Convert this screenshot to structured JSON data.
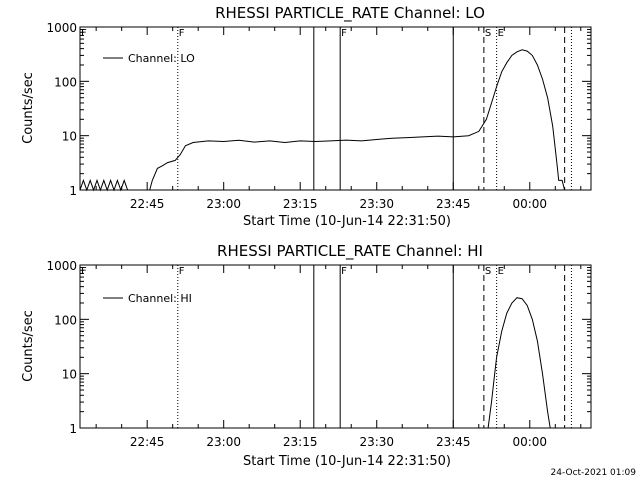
{
  "footer_timestamp": "24-Oct-2021 01:09",
  "chart_data": [
    {
      "type": "line",
      "title": "RHESSI PARTICLE_RATE Channel: LO",
      "xlabel": "Start Time (10-Jun-14 22:31:50)",
      "ylabel": "Counts/sec",
      "yscale": "log",
      "ylim": [
        1,
        1000
      ],
      "xlim": [
        "22:31:50",
        "00:12:00"
      ],
      "y_ticks": [
        {
          "value": 1,
          "label": "1"
        },
        {
          "value": 10,
          "label": "10"
        },
        {
          "value": 100,
          "label": "100"
        },
        {
          "value": 1000,
          "label": "1000"
        }
      ],
      "x_ticks": [
        {
          "value": "22:45",
          "label": "22:45"
        },
        {
          "value": "23:00",
          "label": "23:00"
        },
        {
          "value": "23:15",
          "label": "23:15"
        },
        {
          "value": "23:30",
          "label": "23:30"
        },
        {
          "value": "23:45",
          "label": "23:45"
        },
        {
          "value": "00:00",
          "label": "00:00"
        }
      ],
      "legend": {
        "position": "top-left",
        "entries": [
          "Channel: LO"
        ]
      },
      "vlines": [
        {
          "time": "22:31:50",
          "style": "dotted",
          "label": "F"
        },
        {
          "time": "22:51:00",
          "style": "dotted",
          "label": "F"
        },
        {
          "time": "23:17:40",
          "style": "solid",
          "label": ""
        },
        {
          "time": "23:22:50",
          "style": "solid",
          "label": "F"
        },
        {
          "time": "23:45:00",
          "style": "solid",
          "label": ""
        },
        {
          "time": "23:51:00",
          "style": "dashed",
          "label": "S"
        },
        {
          "time": "23:53:30",
          "style": "dotted",
          "label": "E"
        },
        {
          "time": "00:06:50",
          "style": "dashed",
          "label": ""
        },
        {
          "time": "00:08:10",
          "style": "dotted",
          "label": ""
        }
      ],
      "series": [
        {
          "name": "Channel: LO",
          "points": [
            [
              "22:31:50",
              1
            ],
            [
              "22:32:30",
              1.5
            ],
            [
              "22:33:10",
              1
            ],
            [
              "22:33:50",
              1.5
            ],
            [
              "22:34:30",
              1
            ],
            [
              "22:35:10",
              1.5
            ],
            [
              "22:35:50",
              1
            ],
            [
              "22:36:30",
              1.5
            ],
            [
              "22:37:10",
              1
            ],
            [
              "22:37:50",
              1.5
            ],
            [
              "22:38:30",
              1
            ],
            [
              "22:39:10",
              1.5
            ],
            [
              "22:39:50",
              1
            ],
            [
              "22:40:30",
              1.5
            ],
            [
              "22:41:10",
              1
            ],
            [
              "22:45:30",
              1
            ],
            [
              "22:46:00",
              1.5
            ],
            [
              "22:47:00",
              2.5
            ],
            [
              "22:48:00",
              2.8
            ],
            [
              "22:49:00",
              3.2
            ],
            [
              "22:50:30",
              3.5
            ],
            [
              "22:51:30",
              4.5
            ],
            [
              "22:52:30",
              6.5
            ],
            [
              "22:54:00",
              7.5
            ],
            [
              "22:57:00",
              8
            ],
            [
              "23:00:00",
              7.8
            ],
            [
              "23:03:00",
              8.2
            ],
            [
              "23:06:00",
              7.6
            ],
            [
              "23:09:00",
              8
            ],
            [
              "23:12:00",
              7.5
            ],
            [
              "23:15:00",
              8
            ],
            [
              "23:18:00",
              7.8
            ],
            [
              "23:21:00",
              8
            ],
            [
              "23:24:00",
              8.3
            ],
            [
              "23:27:00",
              8
            ],
            [
              "23:30:00",
              8.5
            ],
            [
              "23:33:00",
              9
            ],
            [
              "23:36:00",
              9.2
            ],
            [
              "23:39:00",
              9.5
            ],
            [
              "23:42:00",
              9.8
            ],
            [
              "23:45:00",
              9.5
            ],
            [
              "23:48:00",
              10
            ],
            [
              "23:50:00",
              12
            ],
            [
              "23:51:30",
              20
            ],
            [
              "23:52:30",
              40
            ],
            [
              "23:53:30",
              80
            ],
            [
              "23:54:30",
              150
            ],
            [
              "23:55:30",
              220
            ],
            [
              "23:56:30",
              300
            ],
            [
              "23:57:30",
              350
            ],
            [
              "23:58:30",
              380
            ],
            [
              "23:59:30",
              360
            ],
            [
              "00:00:30",
              300
            ],
            [
              "00:01:30",
              200
            ],
            [
              "00:02:30",
              110
            ],
            [
              "00:03:30",
              50
            ],
            [
              "00:04:30",
              15
            ],
            [
              "00:05:20",
              3
            ],
            [
              "00:05:40",
              1.5
            ],
            [
              "00:06:00",
              1.5
            ],
            [
              "00:06:20",
              1.5
            ],
            [
              "00:06:50",
              1
            ]
          ]
        }
      ]
    },
    {
      "type": "line",
      "title": "RHESSI PARTICLE_RATE Channel: HI",
      "xlabel": "Start Time (10-Jun-14 22:31:50)",
      "ylabel": "Counts/sec",
      "yscale": "log",
      "ylim": [
        1,
        1000
      ],
      "xlim": [
        "22:31:50",
        "00:12:00"
      ],
      "y_ticks": [
        {
          "value": 1,
          "label": "1"
        },
        {
          "value": 10,
          "label": "10"
        },
        {
          "value": 100,
          "label": "100"
        },
        {
          "value": 1000,
          "label": "1000"
        }
      ],
      "x_ticks": [
        {
          "value": "22:45",
          "label": "22:45"
        },
        {
          "value": "23:00",
          "label": "23:00"
        },
        {
          "value": "23:15",
          "label": "23:15"
        },
        {
          "value": "23:30",
          "label": "23:30"
        },
        {
          "value": "23:45",
          "label": "23:45"
        },
        {
          "value": "00:00",
          "label": "00:00"
        }
      ],
      "legend": {
        "position": "top-left",
        "entries": [
          "Channel: HI"
        ]
      },
      "vlines": [
        {
          "time": "22:31:50",
          "style": "dotted",
          "label": "F"
        },
        {
          "time": "22:51:00",
          "style": "dotted",
          "label": "F"
        },
        {
          "time": "23:17:40",
          "style": "solid",
          "label": ""
        },
        {
          "time": "23:22:50",
          "style": "solid",
          "label": "F"
        },
        {
          "time": "23:45:00",
          "style": "solid",
          "label": ""
        },
        {
          "time": "23:51:00",
          "style": "dashed",
          "label": "S"
        },
        {
          "time": "23:53:30",
          "style": "dotted",
          "label": "E"
        },
        {
          "time": "00:06:50",
          "style": "dashed",
          "label": ""
        },
        {
          "time": "00:08:10",
          "style": "dotted",
          "label": ""
        }
      ],
      "series": [
        {
          "name": "Channel: HI",
          "points": [
            [
              "23:51:50",
              1
            ],
            [
              "23:52:30",
              3
            ],
            [
              "23:53:00",
              8
            ],
            [
              "23:53:30",
              20
            ],
            [
              "23:54:30",
              60
            ],
            [
              "23:55:30",
              130
            ],
            [
              "23:56:30",
              200
            ],
            [
              "23:57:30",
              250
            ],
            [
              "23:58:30",
              240
            ],
            [
              "23:59:30",
              180
            ],
            [
              "00:00:30",
              100
            ],
            [
              "00:01:30",
              40
            ],
            [
              "00:02:30",
              10
            ],
            [
              "00:03:30",
              2
            ],
            [
              "00:04:00",
              1
            ]
          ]
        }
      ]
    }
  ]
}
